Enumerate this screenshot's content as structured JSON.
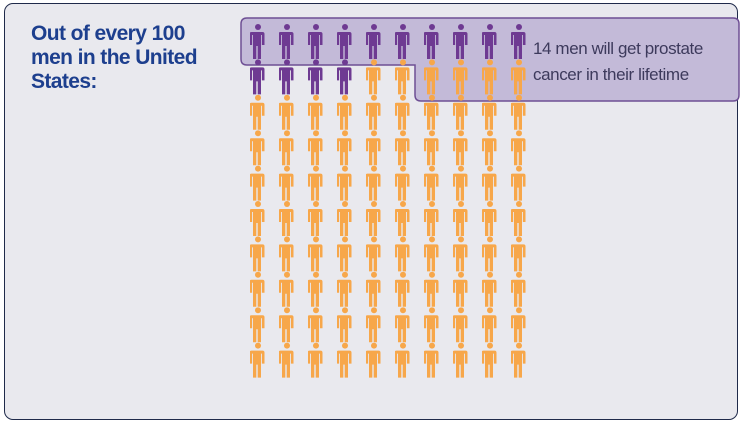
{
  "heading": "Out of every 100 men in the United States:",
  "annotation": "14 men will get prostate cancer in their lifetime",
  "colors": {
    "highlight": "#6e3a92",
    "base": "#f7a74a",
    "callout_fill": "#c3bad8",
    "callout_stroke": "#6e4f94",
    "heading": "#1d3f8e"
  },
  "chart_data": {
    "type": "pictograph",
    "total": 100,
    "highlighted": 14,
    "columns": 10,
    "unit_icon": "man-icon",
    "highlight_label": "14 men will get prostate cancer in their lifetime"
  }
}
